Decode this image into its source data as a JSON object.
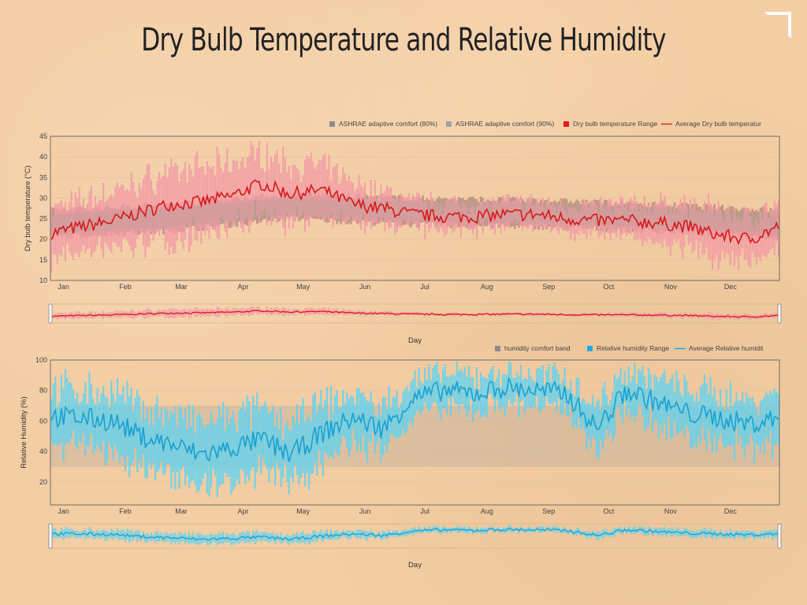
{
  "page": {
    "title": "Dry Bulb Temperature and Relative Humidity"
  },
  "chart_data": [
    {
      "type": "bar",
      "id": "temperature",
      "ylabel": "Dry bulb temperature (°C)",
      "xlabel": "Day",
      "ylim": [
        10,
        45
      ],
      "yticks": [
        10,
        15,
        20,
        25,
        30,
        35,
        40,
        45
      ],
      "months": [
        "Jan",
        "Feb",
        "Mar",
        "Apr",
        "May",
        "Jun",
        "Jul",
        "Aug",
        "Sep",
        "Oct",
        "Nov",
        "Dec"
      ],
      "month_start_days": [
        0,
        31,
        59,
        90,
        120,
        151,
        181,
        212,
        243,
        273,
        304,
        334
      ],
      "legend": [
        {
          "label": "ASHRAE adaptive comfort (80%)",
          "color": "#8c8c8c",
          "kind": "square"
        },
        {
          "label": "ASHRAE adaptive comfort (90%)",
          "color": "#a0a0a0",
          "kind": "square"
        },
        {
          "label": "Dry bulb temperature Range",
          "color": "#e31a1c",
          "kind": "square"
        },
        {
          "label": "Average Dry bulb temperatur",
          "color": "#d62728",
          "kind": "line"
        }
      ],
      "colors": {
        "range": "#f29aa6",
        "comfort80": "#9a6e70",
        "comfort90": "#b8a39a",
        "average": "#d7191c",
        "plot_bg": "#f1cba1"
      },
      "avg_keypoints": {
        "day": [
          0,
          15,
          31,
          45,
          59,
          75,
          90,
          105,
          120,
          135,
          151,
          166,
          181,
          196,
          212,
          227,
          243,
          258,
          273,
          288,
          304,
          319,
          334,
          350,
          364
        ],
        "value": [
          21.5,
          23,
          24.5,
          26.5,
          28.5,
          29,
          30.5,
          33.5,
          31,
          32,
          28.5,
          27.5,
          26,
          25.5,
          25.5,
          26,
          26,
          25,
          24.5,
          24.5,
          24,
          23,
          21,
          20,
          23
        ]
      },
      "comfort80": {
        "day": [
          0,
          59,
          120,
          181,
          243,
          304,
          364
        ],
        "low": [
          20.5,
          22,
          25,
          23.5,
          23,
          22,
          20.5
        ],
        "high": [
          27,
          28.5,
          31,
          30,
          29.5,
          28.5,
          27
        ]
      },
      "comfort90": {
        "day": [
          0,
          59,
          120,
          181,
          243,
          304,
          364
        ],
        "low": [
          21.5,
          23,
          26,
          24.5,
          24,
          23,
          21.5
        ],
        "high": [
          26,
          27.5,
          30,
          29,
          28.5,
          27.5,
          26
        ]
      },
      "range_halfwidth": {
        "day": [
          0,
          31,
          59,
          90,
          120,
          151,
          181,
          212,
          243,
          273,
          304,
          334,
          364
        ],
        "value": [
          6,
          7,
          8,
          8,
          7,
          5,
          3.5,
          3,
          3,
          3.5,
          4.5,
          6,
          5
        ]
      }
    },
    {
      "type": "bar",
      "id": "humidity",
      "ylabel": "Relative Humidity (%)",
      "xlabel": "Day",
      "ylim": [
        5,
        100
      ],
      "yticks": [
        20,
        40,
        60,
        80,
        100
      ],
      "months": [
        "Jan",
        "Feb",
        "Mar",
        "Apr",
        "May",
        "Jun",
        "Jul",
        "Aug",
        "Sep",
        "Oct",
        "Nov",
        "Dec"
      ],
      "month_start_days": [
        0,
        31,
        59,
        90,
        120,
        151,
        181,
        212,
        243,
        273,
        304,
        334
      ],
      "legend": [
        {
          "label": "humidity comfort band",
          "color": "#8c8c8c",
          "kind": "square"
        },
        {
          "label": "Relative humidity Range",
          "color": "#1fa9e0",
          "kind": "square"
        },
        {
          "label": "Average Relative humidit",
          "color": "#1fa9e0",
          "kind": "line"
        }
      ],
      "colors": {
        "range": "#5cd3f3",
        "band": "#a0e0f5",
        "average": "#1ba0cf",
        "plot_bg": "#f1cba1"
      },
      "comfort_band": [
        30,
        70
      ],
      "avg_keypoints": {
        "day": [
          0,
          15,
          31,
          45,
          59,
          75,
          90,
          105,
          120,
          135,
          151,
          166,
          181,
          196,
          212,
          227,
          243,
          258,
          273,
          288,
          304,
          319,
          334,
          350,
          364
        ],
        "value": [
          63,
          62,
          60,
          50,
          45,
          38,
          42,
          48,
          38,
          52,
          62,
          55,
          75,
          80,
          78,
          82,
          80,
          78,
          55,
          80,
          72,
          65,
          62,
          58,
          62
        ]
      },
      "range_halfwidth": {
        "day": [
          0,
          60,
          120,
          181,
          243,
          273,
          304,
          364
        ],
        "value": [
          18,
          20,
          20,
          12,
          10,
          15,
          15,
          17
        ]
      }
    }
  ]
}
